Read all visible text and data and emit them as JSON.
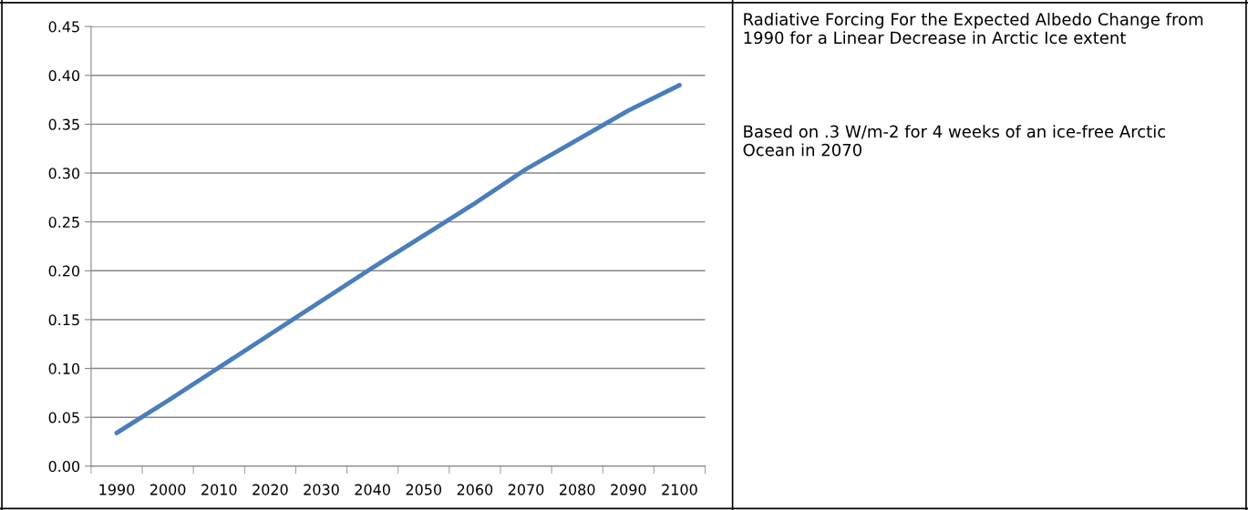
{
  "chart_data": {
    "type": "line",
    "categories": [
      "1990",
      "2000",
      "2010",
      "2020",
      "2030",
      "2040",
      "2050",
      "2060",
      "2070",
      "2080",
      "2090",
      "2100"
    ],
    "series": [
      {
        "color": "#4a7ebb",
        "values": [
          0.034,
          0.067,
          0.101,
          0.135,
          0.169,
          0.203,
          0.236,
          0.269,
          0.304,
          0.334,
          0.364,
          0.39
        ]
      }
    ],
    "ylim": [
      0,
      0.45
    ],
    "yticks": [
      {
        "value": 0,
        "label": "0.00"
      },
      {
        "value": 0.05,
        "label": "0.05"
      },
      {
        "value": 0.1,
        "label": "0.10"
      },
      {
        "value": 0.15,
        "label": "0.15"
      },
      {
        "value": 0.2,
        "label": "0.20"
      },
      {
        "value": 0.25,
        "label": "0.25"
      },
      {
        "value": 0.3,
        "label": "0.30"
      },
      {
        "value": 0.35,
        "label": "0.35"
      },
      {
        "value": 0.4,
        "label": "0.40"
      },
      {
        "value": 0.45,
        "label": "0.45"
      }
    ],
    "grid": "y",
    "marker": "none",
    "line_style": "solid",
    "annotations": [
      "Radiative Forcing For the Expected Albedo Change from 1990 for a Linear Decrease in Arctic Ice extent",
      "Based on .3 W/m-2 for 4 weeks of an ice-free Arctic Ocean in 2070"
    ]
  }
}
